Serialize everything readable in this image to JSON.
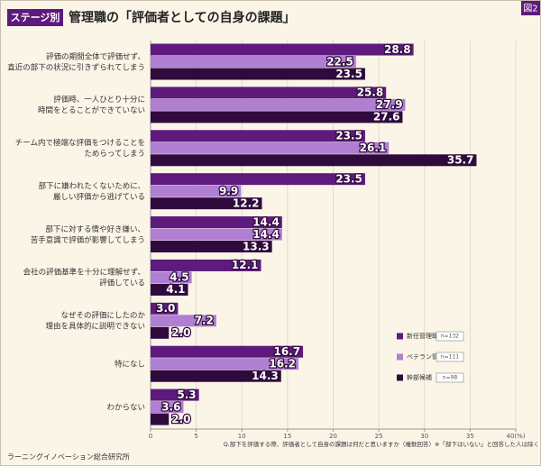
{
  "badge": "ステージ別",
  "figure_label": "図2",
  "source": "ラーニングイノベーション総合研究所",
  "chart_data": {
    "type": "bar",
    "orientation": "horizontal",
    "title": "管理職の「評価者としての自身の課題」",
    "note": "Q.部下を評価する際、評価者として自身の課題は何だと思いますか（複数回答）※「部下はいない」と回答した人は除く",
    "categories": [
      [
        "評価の期間全体で評価せず、",
        "直近の部下の状況に引きずられてしまう"
      ],
      [
        "評価時、一人ひとり十分に",
        "時間をとることができていない"
      ],
      [
        "チーム内で極端な評価をつけることを",
        "ためらってしまう"
      ],
      [
        "部下に嫌われたくないために、",
        "厳しい評価から逃げている"
      ],
      [
        "部下に対する情や好き嫌い、",
        "苦手意識で評価が影響してしまう"
      ],
      [
        "会社の評価基準を十分に理解せず、",
        "評価している"
      ],
      [
        "なぜその評価にしたのか",
        "理由を具体的に説明できない"
      ],
      [
        "特になし"
      ],
      [
        "わからない"
      ]
    ],
    "series": [
      {
        "name": "新任管理職",
        "n": "n=132",
        "color": "#5e1a7c",
        "values": [
          28.8,
          25.8,
          23.5,
          23.5,
          14.4,
          12.1,
          3,
          16.7,
          5.3
        ],
        "value_labels": [
          "28.8",
          "25.8",
          "23.5",
          "23.5",
          "14.4",
          "12.1",
          "3.0",
          "16.7",
          "5.3"
        ]
      },
      {
        "name": "ベテラン管理職",
        "n": "n=111",
        "color": "#b07fd2",
        "values": [
          22.5,
          27.9,
          26.1,
          9.9,
          14.4,
          4.5,
          7.2,
          16.2,
          3.6
        ],
        "value_labels": [
          "22.5",
          "27.9",
          "26.1",
          "9.9",
          "14.4",
          "4.5",
          "7.2",
          "16.2",
          "3.6"
        ]
      },
      {
        "name": "幹部候補",
        "n": "n=98",
        "color": "#2f0b3d",
        "values": [
          23.5,
          27.6,
          35.7,
          12.2,
          13.3,
          4.1,
          2,
          14.3,
          2
        ],
        "value_labels": [
          "23.5",
          "27.6",
          "35.7",
          "12.2",
          "13.3",
          "4.1",
          "2.0",
          "14.3",
          "2.0"
        ]
      }
    ],
    "xlim": [
      0,
      40
    ],
    "xticks": [
      0,
      5,
      10,
      15,
      20,
      25,
      30,
      35,
      {
        "value": 40,
        "label": "40(%)"
      }
    ],
    "grid": true
  }
}
